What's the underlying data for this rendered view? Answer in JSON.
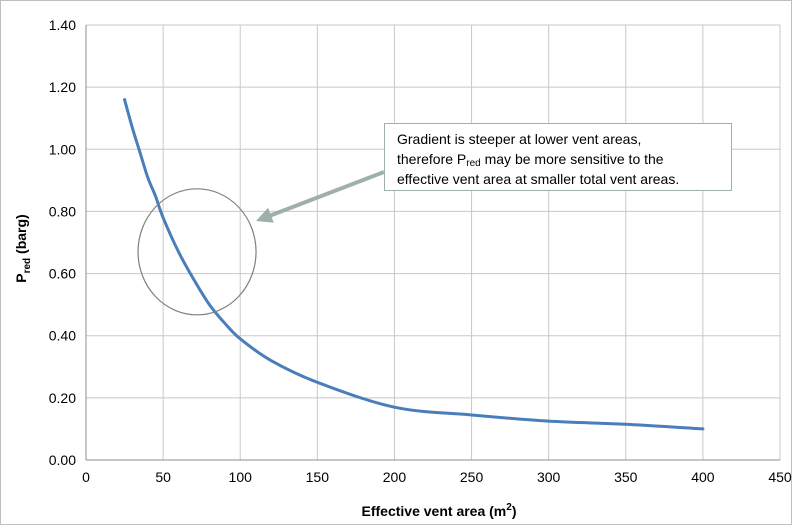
{
  "chart_data": {
    "type": "line",
    "title": "",
    "xlabel": {
      "main": "Effective vent area (m",
      "sup": "2",
      "end": ")"
    },
    "ylabel": {
      "main": "P",
      "sub": "red",
      "end": " (barg)"
    },
    "xlim": [
      0,
      450
    ],
    "ylim": [
      0,
      1.4
    ],
    "x_ticks": [
      "0",
      "50",
      "100",
      "150",
      "200",
      "250",
      "300",
      "350",
      "400",
      "450"
    ],
    "y_ticks": [
      "0.00",
      "0.20",
      "0.40",
      "0.60",
      "0.80",
      "1.00",
      "1.20",
      "1.40"
    ],
    "grid": true,
    "legend": "none",
    "series": [
      {
        "color": "#4a7ebb",
        "x": [
          25,
          30,
          35,
          40,
          45,
          50,
          60,
          70,
          80,
          90,
          100,
          120,
          150,
          200,
          250,
          300,
          350,
          400
        ],
        "y": [
          1.16,
          1.07,
          0.99,
          0.91,
          0.85,
          0.78,
          0.67,
          0.58,
          0.5,
          0.44,
          0.39,
          0.32,
          0.25,
          0.17,
          0.145,
          0.125,
          0.115,
          0.1
        ]
      }
    ],
    "annotations": [
      {
        "kind": "ellipse-with-arrow",
        "center": [
          72,
          0.67
        ],
        "text_parts": {
          "line1": "Gradient is steeper at lower vent areas,",
          "line2_pre": "therefore P",
          "line2_sub": "red",
          "line2_post": " may be more sensitive to the",
          "line3": "effective vent area at smaller total vent areas."
        }
      }
    ]
  },
  "colors": {
    "line": "#4a7ebb",
    "grid": "#c8c8c8",
    "annotation": "#9fb0a9",
    "ellipse": "#808080"
  }
}
